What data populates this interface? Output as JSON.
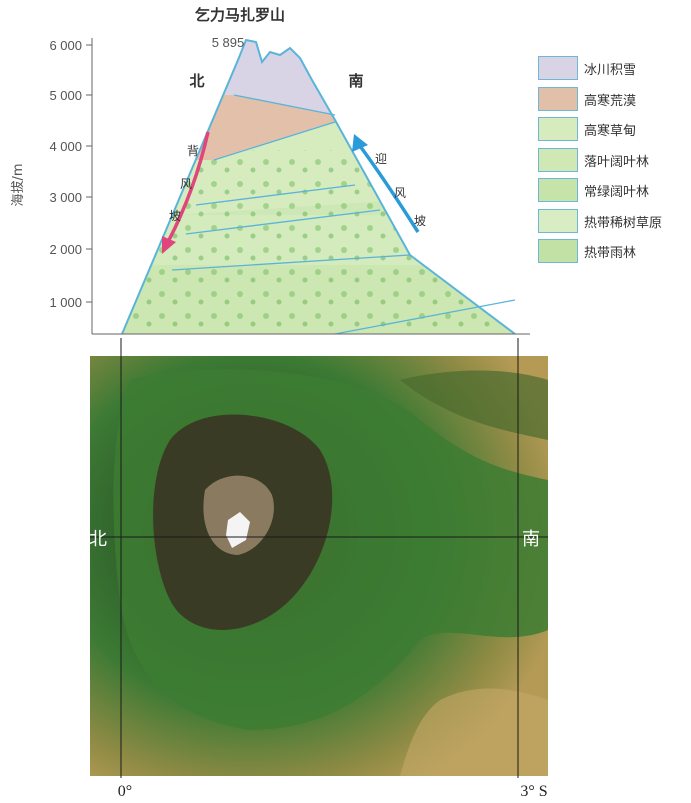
{
  "title": "乞力马扎罗山",
  "peak_elevation": "5 895",
  "y_axis": {
    "label": "海拔/m",
    "ticks": [
      "1 000",
      "2 000",
      "3 000",
      "4 000",
      "5 000",
      "6 000"
    ]
  },
  "slopes": {
    "north_label": "北",
    "south_label": "南",
    "north_arrow_text": [
      "背",
      "风",
      "坡"
    ],
    "south_arrow_text": [
      "迎",
      "风",
      "坡"
    ]
  },
  "legend": [
    {
      "label": "冰川积雪",
      "color": "#d9d3e6"
    },
    {
      "label": "高寒荒漠",
      "color": "#e2bfa8"
    },
    {
      "label": "高寒草甸",
      "color": "#d6ecbf"
    },
    {
      "label": "落叶阔叶林",
      "color": "#cfe8b4"
    },
    {
      "label": "常绿阔叶林",
      "color": "#c6e3aa"
    },
    {
      "label": "热带稀树草原",
      "color": "#d9edc4"
    },
    {
      "label": "热带雨林",
      "color": "#c2e1a4"
    }
  ],
  "map": {
    "north_label": "北",
    "south_label": "南",
    "lon_left": "0°",
    "lon_right": "3° S"
  },
  "colors": {
    "outline": "#5ab4d8",
    "leeward_arrow": "#e0457b",
    "windward_arrow": "#2a9ad8"
  }
}
